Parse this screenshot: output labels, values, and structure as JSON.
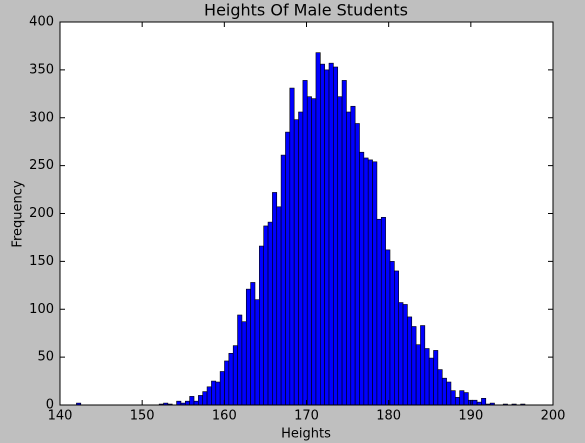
{
  "chart_data": {
    "type": "histogram",
    "title": "Heights Of Male Students",
    "x_label": "Heights",
    "y_label": "Frequency",
    "bins": [
      142.0,
      142.53,
      143.06,
      143.59,
      144.12,
      144.65,
      145.18,
      145.71,
      146.24,
      146.77,
      147.3,
      147.83,
      148.36,
      148.89,
      149.42,
      149.95,
      150.48,
      151.01,
      151.54,
      152.07,
      152.6,
      153.13,
      153.66,
      154.19,
      154.72,
      155.25,
      155.78,
      156.31,
      156.84,
      157.37,
      157.9,
      158.43,
      158.96,
      159.49,
      160.02,
      160.55,
      161.08,
      161.61,
      162.14,
      162.67,
      163.2,
      163.73,
      164.26,
      164.79,
      165.32,
      165.85,
      166.38,
      166.91,
      167.44,
      167.97,
      168.5,
      169.03,
      169.56,
      170.09,
      170.62,
      171.15,
      171.68,
      172.21,
      172.74,
      173.27,
      173.8,
      174.33,
      174.86,
      175.39,
      175.92,
      176.45,
      176.98,
      177.51,
      178.04,
      178.57,
      179.1,
      179.63,
      180.16,
      180.69,
      181.22,
      181.75,
      182.28,
      182.81,
      183.34,
      183.87,
      184.4,
      184.93,
      185.46,
      185.99,
      186.52,
      187.05,
      187.58,
      188.11,
      188.64,
      189.17,
      189.7,
      190.23,
      190.76,
      191.29,
      191.82,
      192.35,
      192.88,
      193.41,
      193.94,
      194.47,
      195.0,
      195.53,
      196.06,
      196.59
    ],
    "values": [
      2,
      0,
      0,
      0,
      0,
      0,
      0,
      0,
      0,
      0,
      0,
      0,
      0,
      0,
      0,
      0,
      0,
      0,
      0,
      1,
      2,
      1,
      0,
      4,
      2,
      4,
      9,
      4,
      10,
      14,
      19,
      25,
      24,
      35,
      46,
      54,
      62,
      94,
      87,
      121,
      128,
      110,
      166,
      187,
      191,
      222,
      207,
      261,
      285,
      331,
      298,
      306,
      339,
      322,
      320,
      368,
      356,
      350,
      357,
      353,
      322,
      339,
      306,
      312,
      294,
      264,
      258,
      256,
      254,
      194,
      196,
      162,
      150,
      140,
      107,
      105,
      92,
      82,
      63,
      83,
      59,
      49,
      57,
      37,
      28,
      24,
      15,
      8,
      15,
      13,
      5,
      5,
      3,
      7,
      1,
      2,
      0,
      0,
      1,
      0,
      1,
      0,
      1
    ],
    "color": "#0000ff",
    "edge_color": "#000000",
    "xlim": [
      140,
      200
    ],
    "xticks": [
      140,
      150,
      160,
      170,
      180,
      190,
      200
    ],
    "ylim": [
      0,
      400
    ],
    "yticks": [
      0,
      50,
      100,
      150,
      200,
      250,
      300,
      350,
      400
    ]
  }
}
